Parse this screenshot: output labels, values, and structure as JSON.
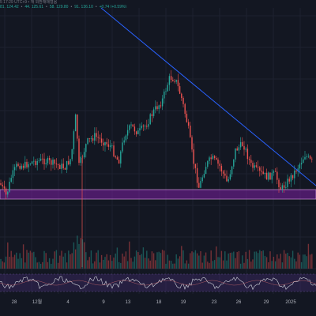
{
  "header": {
    "line1": "5 17:29 UTC+9 • 재 외환채매형음",
    "line2": [
      "81, 124.42",
      "•",
      "44, 125.61",
      "•",
      "58, 129.80",
      "•",
      "91, 136.10",
      "•",
      "+0.74 (+0.59%)"
    ]
  },
  "x_ticks": [
    "28",
    "12월",
    "4",
    "9",
    "13",
    "18",
    "19",
    "23",
    "26",
    "29",
    "2025"
  ],
  "colors": {
    "background": "#131722",
    "up": "#26a69a",
    "down": "#ef5350",
    "trendline": "#2962ff",
    "zone_fill": "#7b1fa2",
    "zone_border": "#ce93d8",
    "rsi_line": "#d1d4dc",
    "rsi_band": "#4a2d7a"
  },
  "chart_data": {
    "type": "candlestick",
    "title": "",
    "x_tick_labels": [
      "28",
      "12월",
      "4",
      "9",
      "13",
      "18",
      "19",
      "23",
      "26",
      "29",
      "2025"
    ],
    "close_series": [
      {
        "x": "28",
        "close": 232
      },
      {
        "x": "12월",
        "close": 208
      },
      {
        "x": "4",
        "close": 205
      },
      {
        "x": "9",
        "close": 182
      },
      {
        "x": "13",
        "close": 160
      },
      {
        "x": "18",
        "close": 110
      },
      {
        "x": "19",
        "close": 150
      },
      {
        "x": "23",
        "close": 215
      },
      {
        "x": "26",
        "close": 200
      },
      {
        "x": "29",
        "close": 238
      },
      {
        "x": "2025",
        "close": 205
      }
    ],
    "support_zone": {
      "from": 240,
      "to": 252
    },
    "trendline": {
      "start": {
        "x": "2024-11-26",
        "y": 10
      },
      "end": {
        "x": "2025-01-03",
        "y": 235
      }
    },
    "panels": [
      "price",
      "volume",
      "rsi"
    ]
  }
}
